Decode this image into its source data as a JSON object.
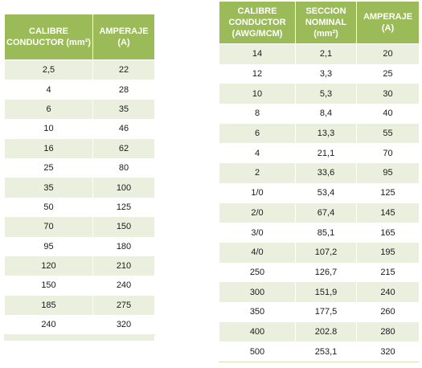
{
  "table_left": {
    "headers": [
      "CALIBRE CONDUCTOR (mm²)",
      "AMPERAJE (A)"
    ],
    "rows": [
      [
        "2,5",
        "22"
      ],
      [
        "4",
        "28"
      ],
      [
        "6",
        "35"
      ],
      [
        "10",
        "46"
      ],
      [
        "16",
        "62"
      ],
      [
        "25",
        "80"
      ],
      [
        "35",
        "100"
      ],
      [
        "50",
        "125"
      ],
      [
        "70",
        "150"
      ],
      [
        "95",
        "180"
      ],
      [
        "120",
        "210"
      ],
      [
        "150",
        "240"
      ],
      [
        "185",
        "275"
      ],
      [
        "240",
        "320"
      ]
    ]
  },
  "table_right": {
    "headers": [
      "CALIBRE CONDUCTOR (AWG/MCM)",
      "SECCION NOMINAL (mm²)",
      "AMPERAJE (A)"
    ],
    "rows": [
      [
        "14",
        "2,1",
        "20"
      ],
      [
        "12",
        "3,3",
        "25"
      ],
      [
        "10",
        "5,3",
        "30"
      ],
      [
        "8",
        "8,4",
        "40"
      ],
      [
        "6",
        "13,3",
        "55"
      ],
      [
        "4",
        "21,1",
        "70"
      ],
      [
        "2",
        "33,6",
        "95"
      ],
      [
        "1/0",
        "53,4",
        "125"
      ],
      [
        "2/0",
        "67,4",
        "145"
      ],
      [
        "3/0",
        "85,1",
        "165"
      ],
      [
        "4/0",
        "107,2",
        "195"
      ],
      [
        "250",
        "126,7",
        "215"
      ],
      [
        "300",
        "151,9",
        "240"
      ],
      [
        "350",
        "177,5",
        "260"
      ],
      [
        "400",
        "202.8",
        "280"
      ],
      [
        "500",
        "253,1",
        "320"
      ]
    ]
  },
  "colors": {
    "header_bg": "#9bbb59",
    "band_bg": "#ebf0de",
    "header_text": "#ffffff"
  }
}
